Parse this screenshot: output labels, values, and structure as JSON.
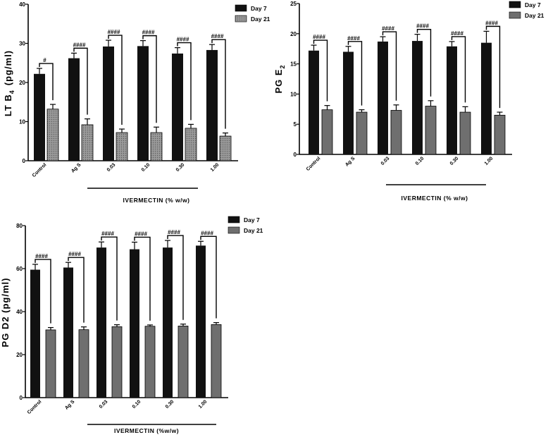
{
  "chart_data": [
    {
      "type": "bar",
      "ylabel": "LT B",
      "ylabel_sub": "4",
      "ylabel_tail": "(pg/ml)",
      "ylim": [
        0,
        40
      ],
      "yticks": [
        0,
        10,
        20,
        30,
        40
      ],
      "categories": [
        "Control",
        "Ag S",
        "0.03",
        "0.10",
        "0.30",
        "1.00"
      ],
      "group_label": "IVERMECTIN (% w/w)",
      "series": [
        {
          "name": "Day 7",
          "color": "#111111",
          "values": [
            22.2,
            26.2,
            29.2,
            29.3,
            27.4,
            28.3
          ],
          "errors": [
            1.4,
            1.3,
            1.6,
            1.4,
            1.5,
            1.4
          ]
        },
        {
          "name": "Day 21",
          "color": "#8c8c8c",
          "values": [
            13.2,
            9.2,
            7.2,
            7.2,
            8.3,
            6.3
          ],
          "errors": [
            1.2,
            1.5,
            0.9,
            1.4,
            1.0,
            0.8
          ]
        }
      ],
      "significance": [
        "#",
        "####",
        "####",
        "####",
        "####",
        "####"
      ]
    },
    {
      "type": "bar",
      "ylabel": "PG E",
      "ylabel_sub": "2",
      "ylabel_tail": "",
      "ylim": [
        0,
        25
      ],
      "yticks": [
        0,
        5,
        10,
        15,
        20,
        25
      ],
      "categories": [
        "Control",
        "Ag S",
        "0.03",
        "0.10",
        "0.30",
        "1.00"
      ],
      "group_label": "IVERMECTIN (% w/w)",
      "series": [
        {
          "name": "Day 7",
          "color": "#111111",
          "values": [
            17.2,
            17.0,
            18.7,
            18.8,
            17.9,
            18.5
          ],
          "errors": [
            0.9,
            0.9,
            0.8,
            1.1,
            0.8,
            1.9
          ]
        },
        {
          "name": "Day 21",
          "color": "#6f6f6f",
          "values": [
            7.4,
            7.0,
            7.3,
            8.0,
            7.0,
            6.5
          ],
          "errors": [
            0.7,
            0.4,
            0.9,
            0.9,
            0.9,
            0.5
          ]
        }
      ],
      "significance": [
        "####",
        "####",
        "####",
        "####",
        "####",
        "####"
      ]
    },
    {
      "type": "bar",
      "ylabel": "PG D2 (pg/ml)",
      "ylabel_sub": "",
      "ylabel_tail": "",
      "ylim": [
        0,
        80
      ],
      "yticks": [
        0,
        20,
        40,
        60,
        80
      ],
      "categories": [
        "Control",
        "Ag S",
        "0.03",
        "0.10",
        "0.30",
        "1.00"
      ],
      "group_label": "IVERMECTIN (%w/w)",
      "series": [
        {
          "name": "Day 7",
          "color": "#111111",
          "values": [
            59.5,
            60.5,
            69.8,
            69.0,
            69.8,
            70.7
          ],
          "errors": [
            2.5,
            2.4,
            2.6,
            3.3,
            3.3,
            2.0
          ]
        },
        {
          "name": "Day 21",
          "color": "#6f6f6f",
          "values": [
            31.5,
            31.6,
            33.0,
            33.2,
            33.3,
            34.0
          ],
          "errors": [
            1.1,
            1.3,
            0.9,
            0.6,
            0.9,
            0.9
          ]
        }
      ],
      "significance": [
        "####",
        "####",
        "####",
        "####",
        "####",
        "####"
      ]
    }
  ]
}
